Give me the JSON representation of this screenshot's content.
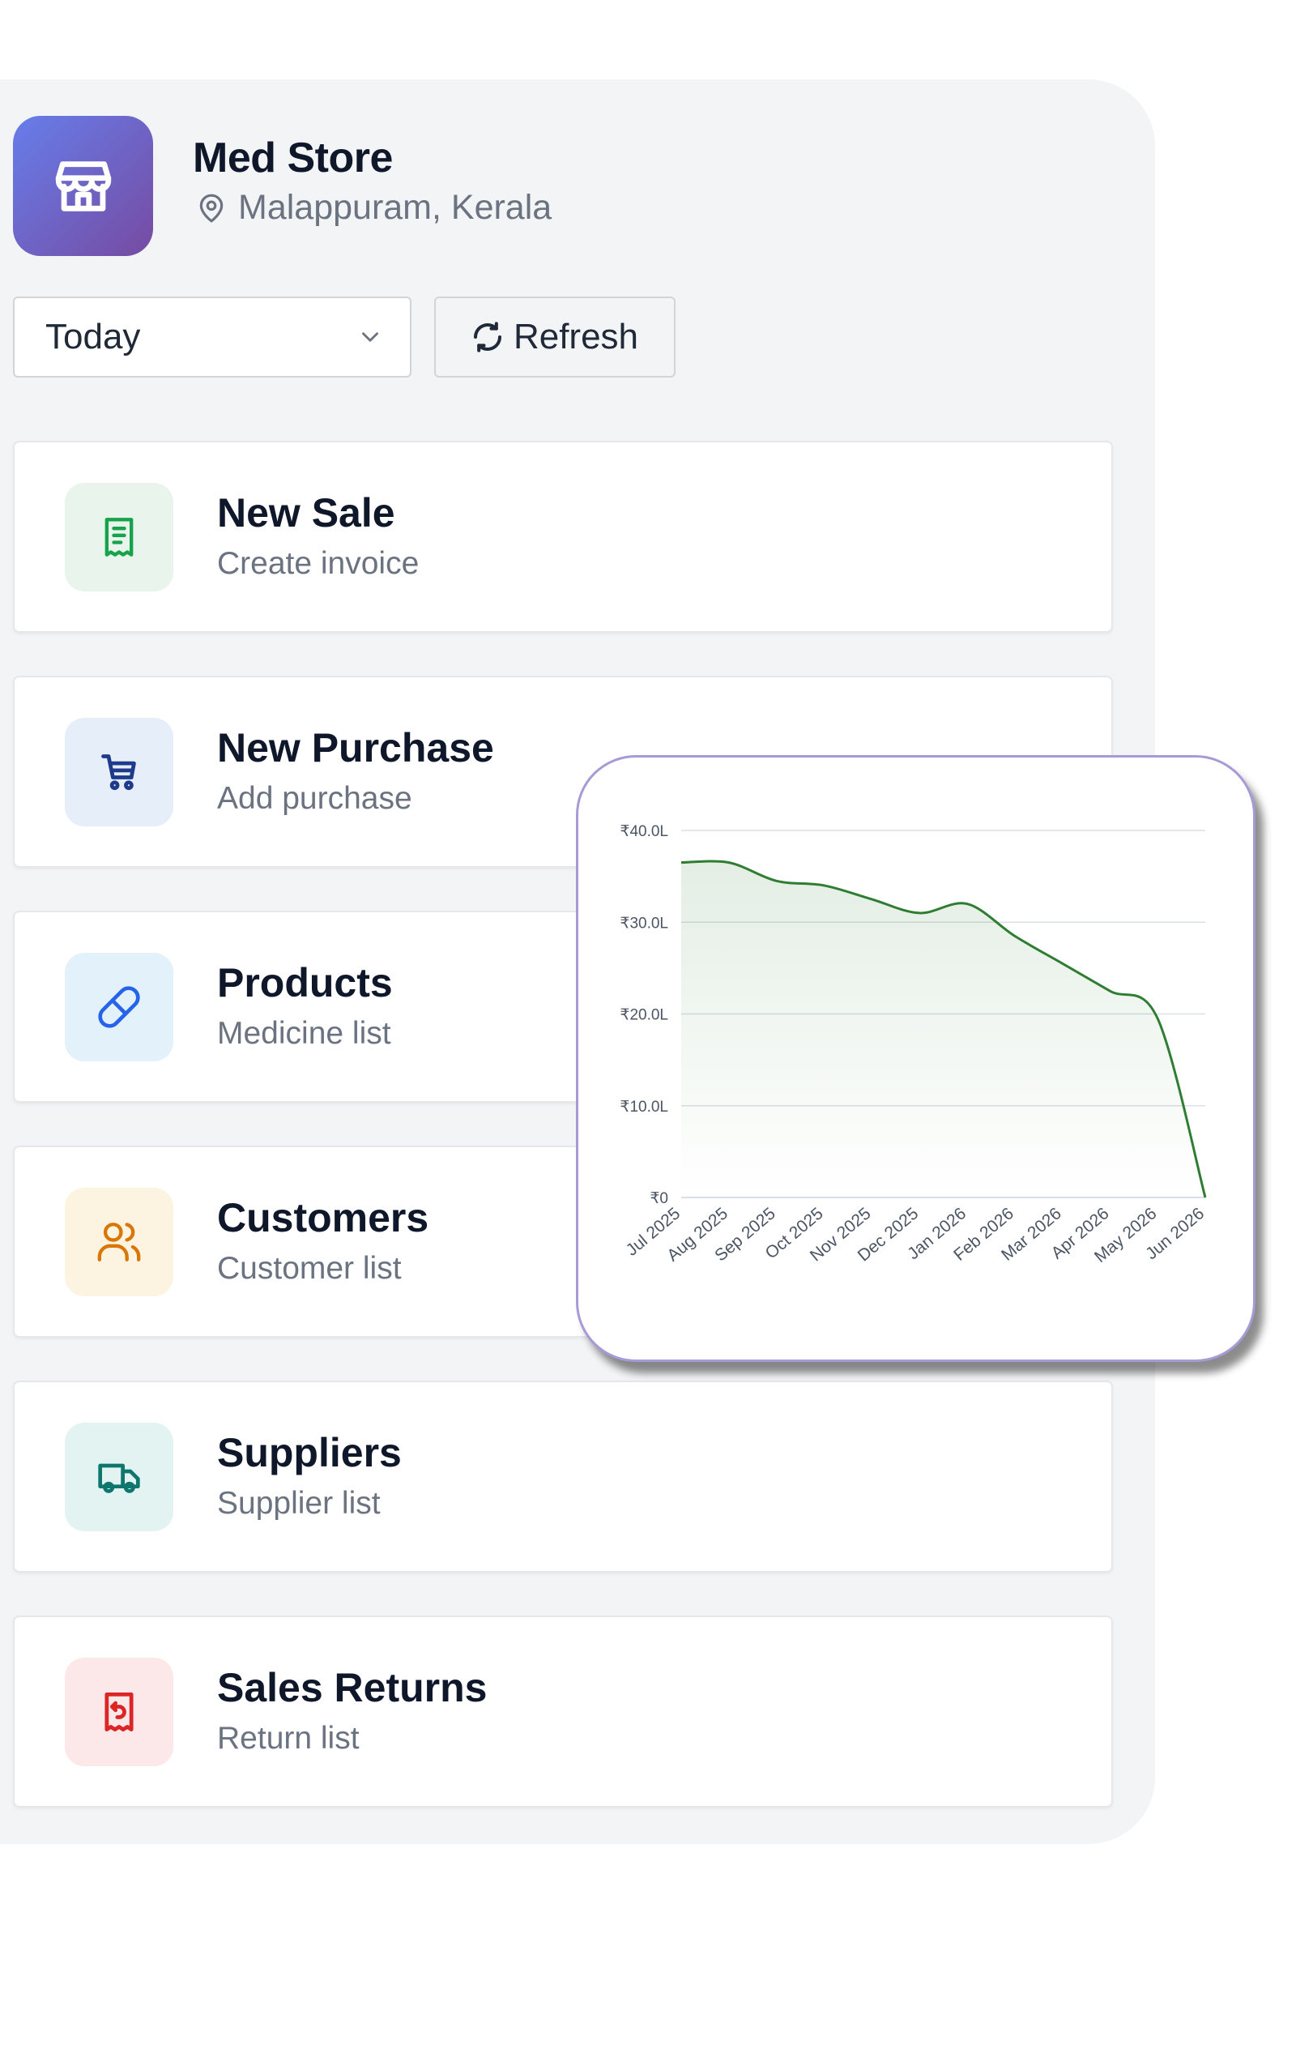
{
  "store": {
    "name": "Med Store",
    "location": "Malappuram, Kerala"
  },
  "filters": {
    "period": "Today",
    "refresh_label": "Refresh"
  },
  "cards": [
    {
      "title": "New Sale",
      "subtitle": "Create invoice",
      "icon": "receipt-icon",
      "color": "#16a34a",
      "bg": "#e8f4ec"
    },
    {
      "title": "New Purchase",
      "subtitle": "Add purchase",
      "icon": "cart-icon",
      "color": "#1e3a8a",
      "bg": "#e6eef9"
    },
    {
      "title": "Products",
      "subtitle": "Medicine list",
      "icon": "pill-icon",
      "color": "#2563eb",
      "bg": "#e3f1fb"
    },
    {
      "title": "Customers",
      "subtitle": "Customer list",
      "icon": "users-icon",
      "color": "#d97706",
      "bg": "#fdf3e1"
    },
    {
      "title": "Suppliers",
      "subtitle": "Supplier list",
      "icon": "truck-icon",
      "color": "#0f766e",
      "bg": "#e3f3f1"
    },
    {
      "title": "Sales Returns",
      "subtitle": "Return list",
      "icon": "return-receipt-icon",
      "color": "#dc2626",
      "bg": "#fce8e8"
    }
  ],
  "chart_data": {
    "type": "area",
    "x": [
      "Jul 2025",
      "Aug 2025",
      "Sep 2025",
      "Oct 2025",
      "Nov 2025",
      "Dec 2025",
      "Jan 2026",
      "Feb 2026",
      "Mar 2026",
      "Apr 2026",
      "May 2026",
      "Jun 2026"
    ],
    "values": [
      36.5,
      36.5,
      34.5,
      34.0,
      32.5,
      31.0,
      32.0,
      28.5,
      25.5,
      22.5,
      19.5,
      0
    ],
    "yticks": [
      "₹0",
      "₹10.0L",
      "₹20.0L",
      "₹30.0L",
      "₹40.0L"
    ],
    "ylim": [
      0,
      40
    ],
    "line_color": "#2e7d32",
    "grid": true
  }
}
